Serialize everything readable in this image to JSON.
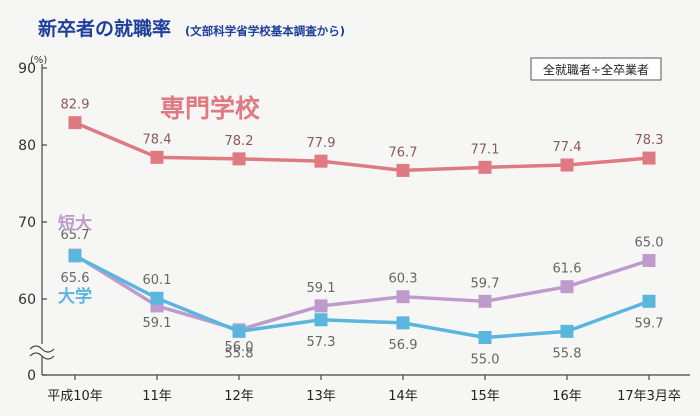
{
  "page": {
    "title": "新卒者の就職率",
    "source": "(文部科学省学校基本調査から)",
    "note": "全就職者÷全卒業者",
    "unit": "(%)"
  },
  "chart_data": {
    "type": "line",
    "title": "新卒者の就職率",
    "subtitle": "(文部科学省学校基本調査から)",
    "xlabel": "",
    "ylabel": "(%)",
    "categories": [
      "平成10年",
      "11年",
      "12年",
      "13年",
      "14年",
      "15年",
      "16年",
      "17年3月卒"
    ],
    "yticks": [
      "0",
      "60",
      "70",
      "80",
      "90"
    ],
    "ylim": [
      50,
      90
    ],
    "axis_break": true,
    "grid": false,
    "legend": "labels next to series",
    "series": [
      {
        "name": "専門学校",
        "color": "#e07a82",
        "values": [
          82.9,
          78.4,
          78.2,
          77.9,
          76.7,
          77.1,
          77.4,
          78.3
        ],
        "labels": [
          "82.9",
          "78.4",
          "78.2",
          "77.9",
          "76.7",
          "77.1",
          "77.4",
          "78.3"
        ]
      },
      {
        "name": "短大",
        "color": "#bf9bcd",
        "values": [
          65.7,
          59.1,
          56.0,
          59.1,
          60.3,
          59.7,
          61.6,
          65.0
        ],
        "labels": [
          "65.7",
          "59.1",
          "56.0",
          "59.1",
          "60.3",
          "59.7",
          "61.6",
          "65.0"
        ]
      },
      {
        "name": "大学",
        "color": "#5bb6de",
        "values": [
          65.6,
          60.1,
          55.8,
          57.3,
          56.9,
          55.0,
          55.8,
          59.7
        ],
        "labels": [
          "65.6",
          "60.1",
          "55.8",
          "57.3",
          "56.9",
          "55.0",
          "55.8",
          "59.7"
        ]
      }
    ]
  }
}
